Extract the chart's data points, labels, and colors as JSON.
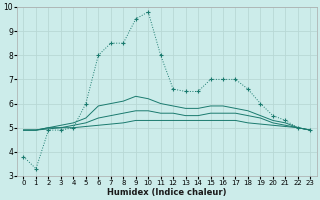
{
  "xlabel": "Humidex (Indice chaleur)",
  "bg_color": "#ccecea",
  "grid_color": "#b8d8d5",
  "line_color": "#1a7a6e",
  "xlim": [
    -0.5,
    23.5
  ],
  "ylim": [
    3,
    10
  ],
  "xticks": [
    0,
    1,
    2,
    3,
    4,
    5,
    6,
    7,
    8,
    9,
    10,
    11,
    12,
    13,
    14,
    15,
    16,
    17,
    18,
    19,
    20,
    21,
    22,
    23
  ],
  "yticks": [
    3,
    4,
    5,
    6,
    7,
    8,
    9,
    10
  ],
  "series": [
    {
      "x": [
        0,
        1,
        2,
        3,
        4,
        5,
        6,
        7,
        8,
        9,
        10,
        11,
        12,
        13,
        14,
        15,
        16,
        17,
        18,
        19,
        20,
        21,
        22,
        23
      ],
      "y": [
        3.8,
        3.3,
        4.9,
        4.9,
        5.0,
        6.0,
        8.0,
        8.5,
        8.5,
        9.5,
        9.8,
        8.0,
        6.6,
        6.5,
        6.5,
        7.0,
        7.0,
        7.0,
        6.6,
        6.0,
        5.5,
        5.3,
        5.0,
        4.9
      ],
      "marker": true,
      "linestyle": "dotted"
    },
    {
      "x": [
        0,
        1,
        2,
        3,
        4,
        5,
        6,
        7,
        8,
        9,
        10,
        11,
        12,
        13,
        14,
        15,
        16,
        17,
        18,
        19,
        20,
        21,
        22,
        23
      ],
      "y": [
        4.9,
        4.9,
        5.0,
        5.1,
        5.2,
        5.4,
        5.9,
        6.0,
        6.1,
        6.3,
        6.2,
        6.0,
        5.9,
        5.8,
        5.8,
        5.9,
        5.9,
        5.8,
        5.7,
        5.5,
        5.3,
        5.2,
        5.0,
        4.9
      ],
      "marker": false,
      "linestyle": "solid"
    },
    {
      "x": [
        0,
        1,
        2,
        3,
        4,
        5,
        6,
        7,
        8,
        9,
        10,
        11,
        12,
        13,
        14,
        15,
        16,
        17,
        18,
        19,
        20,
        21,
        22,
        23
      ],
      "y": [
        4.9,
        4.9,
        5.0,
        5.0,
        5.1,
        5.2,
        5.4,
        5.5,
        5.6,
        5.7,
        5.7,
        5.6,
        5.6,
        5.5,
        5.5,
        5.6,
        5.6,
        5.6,
        5.5,
        5.4,
        5.2,
        5.1,
        5.0,
        4.9
      ],
      "marker": false,
      "linestyle": "solid"
    },
    {
      "x": [
        0,
        1,
        2,
        3,
        4,
        5,
        6,
        7,
        8,
        9,
        10,
        11,
        12,
        13,
        14,
        15,
        16,
        17,
        18,
        19,
        20,
        21,
        22,
        23
      ],
      "y": [
        4.9,
        4.9,
        4.95,
        5.0,
        5.0,
        5.05,
        5.1,
        5.15,
        5.2,
        5.3,
        5.3,
        5.3,
        5.3,
        5.3,
        5.3,
        5.3,
        5.3,
        5.3,
        5.2,
        5.15,
        5.1,
        5.05,
        5.0,
        4.9
      ],
      "marker": false,
      "linestyle": "solid"
    }
  ]
}
